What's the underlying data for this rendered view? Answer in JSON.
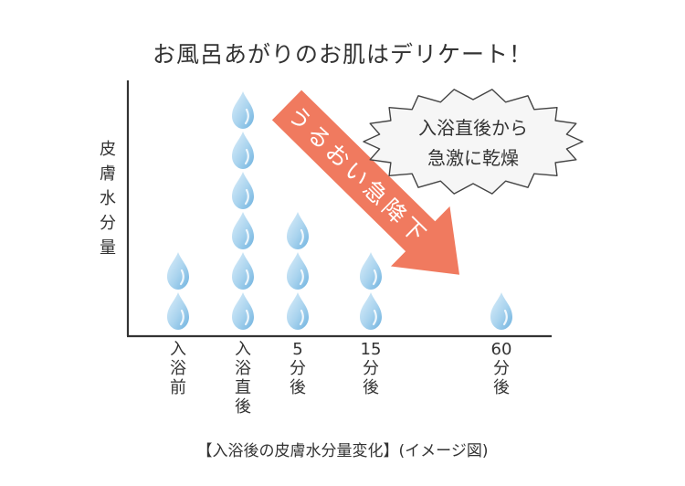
{
  "chart_data": {
    "type": "scatter",
    "title": "お風呂あがりのお肌はデリケート！",
    "ylabel": "皮膚水分量",
    "xlabel": "",
    "categories": [
      "入浴前",
      "入浴直後",
      "5分後",
      "15分後",
      "60分後"
    ],
    "values": [
      2,
      6,
      3,
      2,
      1
    ],
    "caption": "【入浴後の皮膚水分量変化】(イメージ図)",
    "annotations": {
      "arrow_label": "うるおい急降下",
      "callout": [
        "入浴直後から",
        "急激に乾燥"
      ]
    },
    "grid": false,
    "colors": {
      "drop_light": "#dff0fb",
      "drop_mid": "#a9d3ee",
      "drop_dark": "#6fb2df",
      "arrow": "#f07a5f",
      "axis": "#333333",
      "callout_fill": "#f6f6f6",
      "callout_stroke": "#444444"
    }
  }
}
